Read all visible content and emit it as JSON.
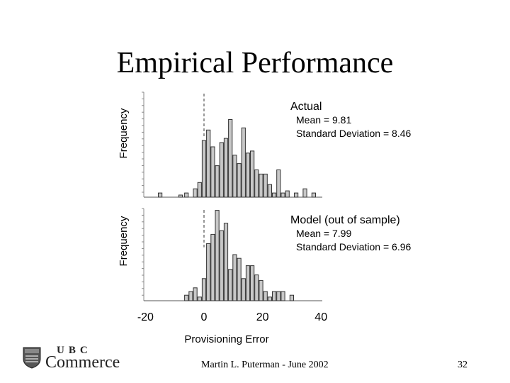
{
  "slide": {
    "title": "Empirical Performance",
    "footer_author": "Martin L. Puterman - June 2002",
    "page_number": "32"
  },
  "logo": {
    "ubc": "UBC",
    "name": "Commerce"
  },
  "chart_data": [
    {
      "type": "bar",
      "title": "Actual",
      "annotations": [
        "Mean = 9.81",
        "Standard Deviation = 8.46"
      ],
      "xlabel": "Provisioning Error",
      "ylabel": "Frequency",
      "xlim": [
        -22,
        42
      ],
      "xticks": [],
      "reference_line_x": 0,
      "bin_width": 1.5,
      "x": [
        -15,
        -8,
        -6,
        -3,
        -1.5,
        0,
        1.5,
        3,
        4.5,
        6,
        7.5,
        9,
        10.5,
        12,
        13.5,
        15,
        16.5,
        18,
        19.5,
        21,
        22.5,
        24,
        25.5,
        27,
        28.5,
        31.5,
        34.5,
        37.5
      ],
      "values": [
        0.4,
        0.2,
        0.4,
        0.8,
        1.4,
        5.4,
        6.4,
        4.8,
        3.0,
        5.2,
        5.6,
        7.4,
        4.0,
        3.2,
        6.6,
        4.2,
        4.4,
        2.6,
        2.2,
        2.2,
        1.2,
        0.4,
        2.6,
        0.4,
        0.6,
        0.4,
        0.8,
        0.4
      ]
    },
    {
      "type": "bar",
      "title": "Model (out of sample)",
      "annotations": [
        "Mean = 7.99",
        "Standard Deviation = 6.96"
      ],
      "xlabel": "Provisioning Error",
      "ylabel": "Frequency",
      "xlim": [
        -22,
        42
      ],
      "xticks": [
        "-20",
        "0",
        "20",
        "40"
      ],
      "reference_line_x": 0,
      "bin_width": 1.5,
      "x": [
        -6,
        -4.5,
        -3,
        -1.5,
        0,
        1.5,
        3,
        4.5,
        6,
        7.5,
        9,
        10.5,
        12,
        13.5,
        15,
        16.5,
        18,
        19.5,
        21,
        22.5,
        24,
        25.5,
        27,
        30
      ],
      "values": [
        0.6,
        1.0,
        1.4,
        0.4,
        2.4,
        6.2,
        7.2,
        9.8,
        7.6,
        8.4,
        3.4,
        5.0,
        4.6,
        2.4,
        3.8,
        3.8,
        2.8,
        2.2,
        1.0,
        0.4,
        1.0,
        1.0,
        1.0,
        0.6
      ]
    }
  ]
}
